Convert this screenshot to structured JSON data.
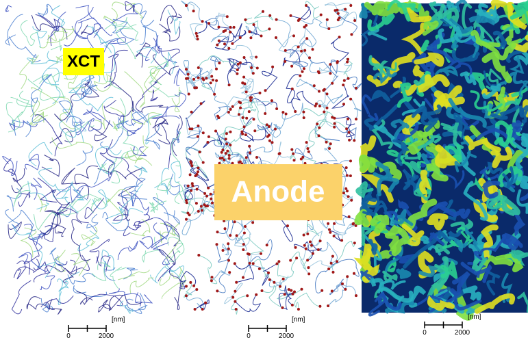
{
  "labels": {
    "xct": "XCT",
    "anode": "Anode"
  },
  "scale_bars": [
    {
      "unit": "[nm]",
      "start": "0",
      "end": "2000"
    },
    {
      "unit": "[nm]",
      "start": "0",
      "end": "2000"
    },
    {
      "unit": "[nm]",
      "start": "0",
      "end": "2000"
    }
  ]
}
